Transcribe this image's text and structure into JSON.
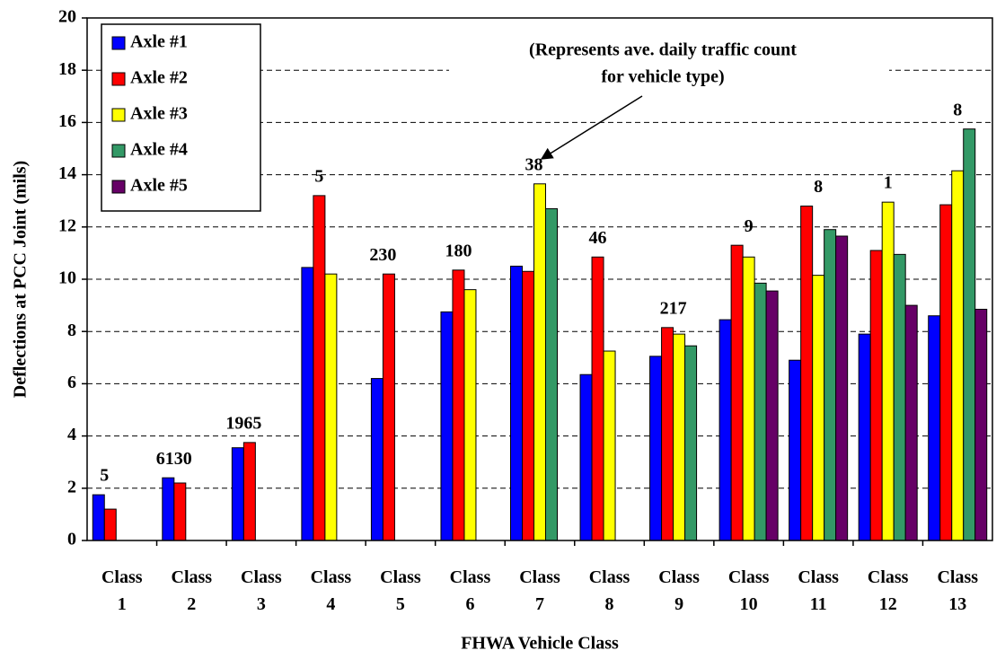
{
  "chart_data": {
    "type": "bar",
    "x_label": "FHWA Vehicle Class",
    "y_label": "Deflections at PCC Joint (mils)",
    "annotation": [
      "(Represents ave. daily traffic count",
      "for vehicle type)"
    ],
    "categories": [
      "Class 1",
      "Class 2",
      "Class 3",
      "Class 4",
      "Class 5",
      "Class 6",
      "Class 7",
      "Class 8",
      "Class 9",
      "Class 10",
      "Class 11",
      "Class 12",
      "Class 13"
    ],
    "traffic_counts": [
      5,
      6130,
      1965,
      5,
      230,
      180,
      38,
      46,
      217,
      9,
      8,
      1,
      8
    ],
    "series": [
      {
        "name": "Axle #1",
        "color": "#0000ff",
        "values": [
          1.75,
          2.4,
          3.55,
          10.45,
          6.2,
          8.75,
          10.5,
          6.35,
          7.05,
          8.45,
          6.9,
          7.9,
          8.6
        ]
      },
      {
        "name": "Axle #2",
        "color": "#ff0000",
        "values": [
          1.2,
          2.2,
          3.75,
          13.2,
          10.2,
          10.35,
          10.3,
          10.85,
          8.15,
          11.3,
          12.8,
          11.1,
          12.85
        ]
      },
      {
        "name": "Axle #3",
        "color": "#ffff00",
        "values": [
          null,
          null,
          null,
          10.2,
          null,
          9.6,
          13.65,
          7.25,
          7.9,
          10.85,
          10.15,
          12.95,
          14.15
        ]
      },
      {
        "name": "Axle #4",
        "color": "#339966",
        "values": [
          null,
          null,
          null,
          null,
          null,
          null,
          12.7,
          null,
          7.45,
          9.85,
          11.9,
          10.95,
          15.75
        ]
      },
      {
        "name": "Axle #5",
        "color": "#660066",
        "values": [
          null,
          null,
          null,
          null,
          null,
          null,
          null,
          null,
          null,
          9.55,
          11.65,
          9.0,
          8.85
        ]
      }
    ],
    "ylim": [
      0,
      20
    ],
    "yticks": [
      0,
      2,
      4,
      6,
      8,
      10,
      12,
      14,
      16,
      18,
      20
    ],
    "grid": true,
    "legend": "upper left"
  }
}
